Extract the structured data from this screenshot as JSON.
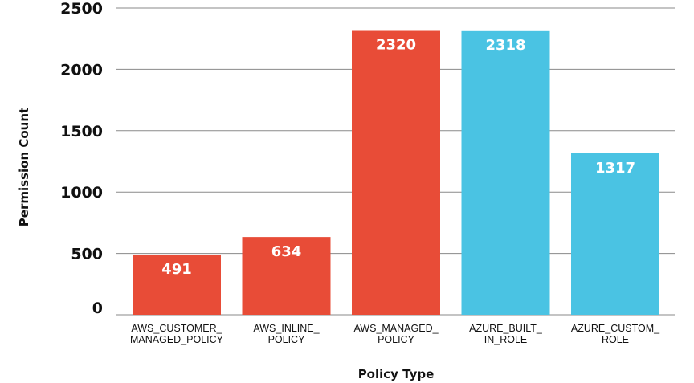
{
  "chart_data": {
    "type": "bar",
    "categories": [
      [
        "AWS_CUSTOMER_",
        "MANAGED_POLICY"
      ],
      [
        "AWS_INLINE_",
        "POLICY"
      ],
      [
        "AWS_MANAGED_",
        "POLICY"
      ],
      [
        "AZURE_BUILT_",
        "IN_ROLE"
      ],
      [
        "AZURE_CUSTOM_",
        "ROLE"
      ]
    ],
    "values": [
      491,
      634,
      2320,
      2318,
      1317
    ],
    "data_labels": [
      "491",
      "634",
      "2320",
      "2318",
      "1317"
    ],
    "bar_colors": [
      "#e84c37",
      "#e84c37",
      "#e84c37",
      "#4ac3e3",
      "#4ac3e3"
    ],
    "xlabel": "Policy Type",
    "ylabel": "Permission Count",
    "ylim": [
      0,
      2500
    ],
    "yticks": [
      0,
      500,
      1000,
      1500,
      2000,
      2500
    ],
    "ytick_labels": [
      "0",
      "500",
      "1000",
      "1500",
      "2000",
      "2500"
    ],
    "grid": true,
    "colors": {
      "gridline": "#8a8a8a",
      "text": "#111111",
      "label_text": "#ffffff"
    }
  }
}
